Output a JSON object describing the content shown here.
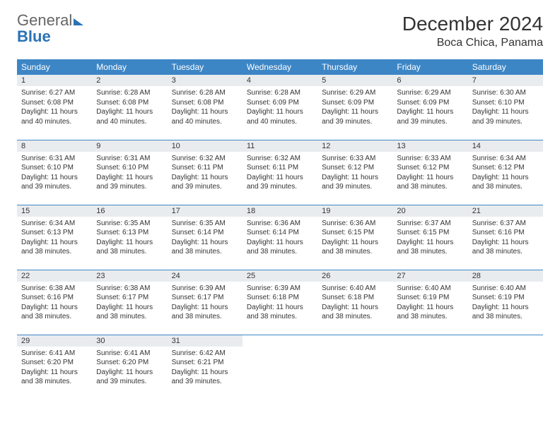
{
  "logo": {
    "word1": "General",
    "word2": "Blue"
  },
  "title": "December 2024",
  "location": "Boca Chica, Panama",
  "colors": {
    "header_bg": "#3d86c6",
    "header_text": "#ffffff",
    "daynum_bg": "#e9ecef",
    "border": "#3d86c6",
    "logo_blue": "#2a72b5",
    "body_text": "#333333"
  },
  "weekdays": [
    "Sunday",
    "Monday",
    "Tuesday",
    "Wednesday",
    "Thursday",
    "Friday",
    "Saturday"
  ],
  "days": [
    {
      "n": 1,
      "sr": "6:27 AM",
      "ss": "6:08 PM",
      "dl": "11 hours and 40 minutes."
    },
    {
      "n": 2,
      "sr": "6:28 AM",
      "ss": "6:08 PM",
      "dl": "11 hours and 40 minutes."
    },
    {
      "n": 3,
      "sr": "6:28 AM",
      "ss": "6:08 PM",
      "dl": "11 hours and 40 minutes."
    },
    {
      "n": 4,
      "sr": "6:28 AM",
      "ss": "6:09 PM",
      "dl": "11 hours and 40 minutes."
    },
    {
      "n": 5,
      "sr": "6:29 AM",
      "ss": "6:09 PM",
      "dl": "11 hours and 39 minutes."
    },
    {
      "n": 6,
      "sr": "6:29 AM",
      "ss": "6:09 PM",
      "dl": "11 hours and 39 minutes."
    },
    {
      "n": 7,
      "sr": "6:30 AM",
      "ss": "6:10 PM",
      "dl": "11 hours and 39 minutes."
    },
    {
      "n": 8,
      "sr": "6:31 AM",
      "ss": "6:10 PM",
      "dl": "11 hours and 39 minutes."
    },
    {
      "n": 9,
      "sr": "6:31 AM",
      "ss": "6:10 PM",
      "dl": "11 hours and 39 minutes."
    },
    {
      "n": 10,
      "sr": "6:32 AM",
      "ss": "6:11 PM",
      "dl": "11 hours and 39 minutes."
    },
    {
      "n": 11,
      "sr": "6:32 AM",
      "ss": "6:11 PM",
      "dl": "11 hours and 39 minutes."
    },
    {
      "n": 12,
      "sr": "6:33 AM",
      "ss": "6:12 PM",
      "dl": "11 hours and 39 minutes."
    },
    {
      "n": 13,
      "sr": "6:33 AM",
      "ss": "6:12 PM",
      "dl": "11 hours and 38 minutes."
    },
    {
      "n": 14,
      "sr": "6:34 AM",
      "ss": "6:12 PM",
      "dl": "11 hours and 38 minutes."
    },
    {
      "n": 15,
      "sr": "6:34 AM",
      "ss": "6:13 PM",
      "dl": "11 hours and 38 minutes."
    },
    {
      "n": 16,
      "sr": "6:35 AM",
      "ss": "6:13 PM",
      "dl": "11 hours and 38 minutes."
    },
    {
      "n": 17,
      "sr": "6:35 AM",
      "ss": "6:14 PM",
      "dl": "11 hours and 38 minutes."
    },
    {
      "n": 18,
      "sr": "6:36 AM",
      "ss": "6:14 PM",
      "dl": "11 hours and 38 minutes."
    },
    {
      "n": 19,
      "sr": "6:36 AM",
      "ss": "6:15 PM",
      "dl": "11 hours and 38 minutes."
    },
    {
      "n": 20,
      "sr": "6:37 AM",
      "ss": "6:15 PM",
      "dl": "11 hours and 38 minutes."
    },
    {
      "n": 21,
      "sr": "6:37 AM",
      "ss": "6:16 PM",
      "dl": "11 hours and 38 minutes."
    },
    {
      "n": 22,
      "sr": "6:38 AM",
      "ss": "6:16 PM",
      "dl": "11 hours and 38 minutes."
    },
    {
      "n": 23,
      "sr": "6:38 AM",
      "ss": "6:17 PM",
      "dl": "11 hours and 38 minutes."
    },
    {
      "n": 24,
      "sr": "6:39 AM",
      "ss": "6:17 PM",
      "dl": "11 hours and 38 minutes."
    },
    {
      "n": 25,
      "sr": "6:39 AM",
      "ss": "6:18 PM",
      "dl": "11 hours and 38 minutes."
    },
    {
      "n": 26,
      "sr": "6:40 AM",
      "ss": "6:18 PM",
      "dl": "11 hours and 38 minutes."
    },
    {
      "n": 27,
      "sr": "6:40 AM",
      "ss": "6:19 PM",
      "dl": "11 hours and 38 minutes."
    },
    {
      "n": 28,
      "sr": "6:40 AM",
      "ss": "6:19 PM",
      "dl": "11 hours and 38 minutes."
    },
    {
      "n": 29,
      "sr": "6:41 AM",
      "ss": "6:20 PM",
      "dl": "11 hours and 38 minutes."
    },
    {
      "n": 30,
      "sr": "6:41 AM",
      "ss": "6:20 PM",
      "dl": "11 hours and 39 minutes."
    },
    {
      "n": 31,
      "sr": "6:42 AM",
      "ss": "6:21 PM",
      "dl": "11 hours and 39 minutes."
    }
  ],
  "labels": {
    "sunrise": "Sunrise:",
    "sunset": "Sunset:",
    "daylight": "Daylight:"
  },
  "layout": {
    "first_weekday": 0,
    "rows": 5,
    "cols": 7
  }
}
